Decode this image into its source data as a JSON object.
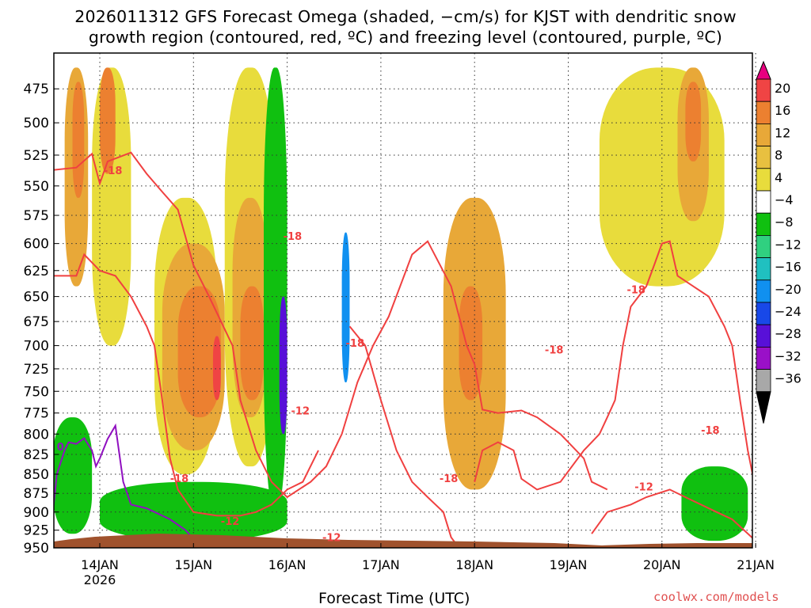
{
  "title": {
    "line1": "2026011312 GFS Forecast Omega (shaded, −cm/s) for KJST with dendritic snow",
    "line2": "growth region (contoured, red, ºC) and freezing level (contoured, purple, ºC)"
  },
  "xlabel": "Forecast Time (UTC)",
  "credit": "coolwx.com/models",
  "colors": {
    "dgz_contour": "#f04040",
    "freezing_contour": "#9010c0",
    "terrain": "#a0522d"
  },
  "chart_data": {
    "type": "heatmap",
    "title": "2026011312 GFS Forecast Omega (shaded, −cm/s) for KJST with dendritic snow growth region (contoured, red, ºC) and freezing level (contoured, purple, ºC)",
    "xlabel": "Forecast Time (UTC)",
    "ylabel": "",
    "x_ticks": [
      "14JAN",
      "15JAN",
      "16JAN",
      "17JAN",
      "18JAN",
      "19JAN",
      "20JAN",
      "21JAN"
    ],
    "x_tick_sub": [
      "2026",
      "",
      "",
      "",
      "",
      "",
      "",
      ""
    ],
    "xlim_hours": [
      -12,
      168
    ],
    "y_ticks": [
      475,
      500,
      525,
      550,
      575,
      600,
      625,
      650,
      675,
      700,
      725,
      750,
      775,
      800,
      825,
      850,
      875,
      900,
      925,
      950
    ],
    "ylim": [
      450,
      950
    ],
    "y_log": true,
    "colorbar": {
      "labels": [
        "20",
        "16",
        "12",
        "8",
        "4",
        "−4",
        "−8",
        "−12",
        "−16",
        "−20",
        "−24",
        "−28",
        "−32",
        "−36"
      ],
      "colors": [
        "#e8007f",
        "#f04444",
        "#ec8030",
        "#e8a838",
        "#e8c040",
        "#e8dc3c",
        "#ffffff",
        "#10c010",
        "#30d080",
        "#20c0c0",
        "#1090f0",
        "#1848e8",
        "#5810d8",
        "#9a10c8",
        "#a8a8a8",
        "#000000"
      ]
    },
    "contour_labels": [
      {
        "text": "-18",
        "hour": 1,
        "p": 537
      },
      {
        "text": "-18",
        "hour": 47,
        "p": 593
      },
      {
        "text": "-18",
        "hour": 63,
        "p": 697
      },
      {
        "text": "-12",
        "hour": 49,
        "p": 772
      },
      {
        "text": "-18",
        "hour": 18,
        "p": 855
      },
      {
        "text": "-12",
        "hour": 31,
        "p": 912
      },
      {
        "text": "-12",
        "hour": 57,
        "p": 935
      },
      {
        "text": "-18",
        "hour": 87,
        "p": 855
      },
      {
        "text": "-18",
        "hour": 114,
        "p": 704
      },
      {
        "text": "-18",
        "hour": 135,
        "p": 643
      },
      {
        "text": "-18",
        "hour": 154,
        "p": 795
      },
      {
        "text": "-12",
        "hour": 137,
        "p": 866
      },
      {
        "text": "0",
        "hour": -11,
        "p": 815
      }
    ],
    "shading": [
      {
        "level": 8,
        "hour_range": [
          -9,
          -3
        ],
        "p_range": [
          460,
          640
        ]
      },
      {
        "level": 12,
        "hour_range": [
          -7,
          -4
        ],
        "p_range": [
          470,
          560
        ]
      },
      {
        "level": 4,
        "hour_range": [
          -2,
          8
        ],
        "p_range": [
          460,
          700
        ]
      },
      {
        "level": 12,
        "hour_range": [
          0,
          4
        ],
        "p_range": [
          460,
          540
        ]
      },
      {
        "level": 4,
        "hour_range": [
          14,
          30
        ],
        "p_range": [
          560,
          850
        ]
      },
      {
        "level": 8,
        "hour_range": [
          16,
          32
        ],
        "p_range": [
          600,
          820
        ]
      },
      {
        "level": 12,
        "hour_range": [
          20,
          31
        ],
        "p_range": [
          640,
          780
        ]
      },
      {
        "level": 16,
        "hour_range": [
          29,
          31
        ],
        "p_range": [
          690,
          760
        ]
      },
      {
        "level": 4,
        "hour_range": [
          32,
          45
        ],
        "p_range": [
          460,
          840
        ]
      },
      {
        "level": 8,
        "hour_range": [
          34,
          43
        ],
        "p_range": [
          560,
          780
        ]
      },
      {
        "level": 12,
        "hour_range": [
          36,
          42
        ],
        "p_range": [
          640,
          760
        ]
      },
      {
        "level": -8,
        "hour_range": [
          42,
          48
        ],
        "p_range": [
          460,
          900
        ]
      },
      {
        "level": -24,
        "hour_range": [
          46,
          48
        ],
        "p_range": [
          650,
          800
        ]
      },
      {
        "level": -20,
        "hour_range": [
          62,
          64
        ],
        "p_range": [
          590,
          740
        ]
      },
      {
        "level": 8,
        "hour_range": [
          88,
          104
        ],
        "p_range": [
          560,
          870
        ]
      },
      {
        "level": 12,
        "hour_range": [
          92,
          98
        ],
        "p_range": [
          640,
          760
        ]
      },
      {
        "level": 4,
        "hour_range": [
          128,
          160
        ],
        "p_range": [
          460,
          640
        ]
      },
      {
        "level": 8,
        "hour_range": [
          148,
          156
        ],
        "p_range": [
          460,
          580
        ]
      },
      {
        "level": 12,
        "hour_range": [
          150,
          154
        ],
        "p_range": [
          470,
          530
        ]
      },
      {
        "level": -8,
        "hour_range": [
          -12,
          -2
        ],
        "p_range": [
          780,
          930
        ]
      },
      {
        "level": -8,
        "hour_range": [
          0,
          48
        ],
        "p_range": [
          860,
          940
        ]
      },
      {
        "level": -8,
        "hour_range": [
          149,
          166
        ],
        "p_range": [
          840,
          940
        ]
      }
    ]
  }
}
